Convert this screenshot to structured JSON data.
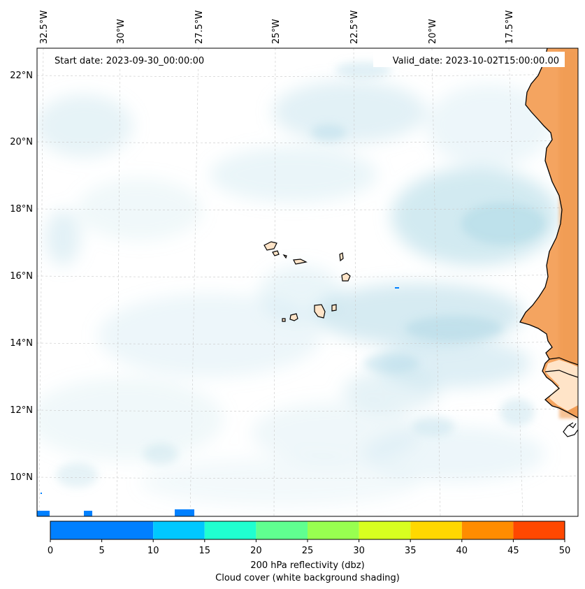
{
  "map": {
    "start_date": "Start date: 2023-09-30_00:00:00",
    "valid_date": "Valid_date: 2023-10-02T15:00:00.00",
    "top_longitude_labels": [
      "32.5°W",
      "30°W",
      "27.5°W",
      "25°W",
      "22.5°W",
      "20°W",
      "17.5°W"
    ],
    "left_latitude_labels": [
      "22°N",
      "20°N",
      "18°N",
      "16°N",
      "14°N",
      "12°N",
      "10°N"
    ]
  },
  "colorbar": {
    "ticks": [
      "0",
      "5",
      "10",
      "15",
      "20",
      "25",
      "30",
      "35",
      "40",
      "45",
      "50"
    ],
    "tick_values": [
      0,
      5,
      10,
      15,
      20,
      25,
      30,
      35,
      40,
      45,
      50
    ],
    "colors": [
      "#0080ff",
      "#00c8ff",
      "#20ffd0",
      "#60ff90",
      "#98ff50",
      "#d8ff20",
      "#ffd800",
      "#ff8c00",
      "#ff4800",
      "#ff4800"
    ],
    "label_line1": "200 hPa reflectivity (dbz)",
    "label_line2": "Cloud cover (white background shading)"
  },
  "colors": {
    "land": "#f4a460",
    "cloud": "#add8e6",
    "coast": "#000000"
  }
}
